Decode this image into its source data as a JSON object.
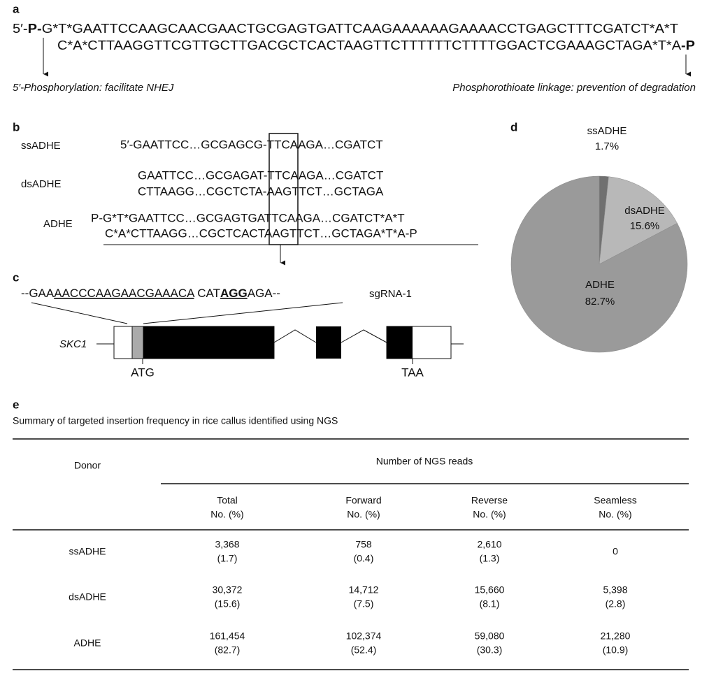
{
  "panel_a": {
    "panel_label": "a",
    "top_strand": [
      "5′-",
      "P-",
      "G*T*GAATTCCAAGCAACGAACTGCGAGTGATTCAAGAAAAAAGAAAACCTGAGCTTTCGATCT*A*T"
    ],
    "bottom_strand": [
      "C*A*CTTAAGGTTCGTTGCTTGACGCTCACTAAGTTCTTTTTTCTTTTGGACTCGAAAGCTAGA*T*A",
      "-P"
    ],
    "annotations": [
      "5′-Phosphorylation: facilitate NHEJ",
      "Phosphorothioate linkage: prevention of degradation"
    ]
  },
  "panel_b": {
    "panel_label": "b",
    "rows": [
      {
        "donor": "ssADHE",
        "strands": [
          "5′-GAATTCC…GCGAGCG-TTCAAGA…CGATCT"
        ]
      },
      {
        "donor": "dsADHE",
        "strands": [
          "GAATTCC…GCGAGAT-TTCAAGA…CGATCT",
          "CTTAAGG…CGCTCTA-AAGTTCT…GCTAGA"
        ]
      },
      {
        "donor": "ADHE",
        "strands": [
          "P-G*T*GAATTCC…GCGAGTGATTCAAGA…CGATCT*A*T",
          "C*A*CTTAAGG…CGCTCACTAAGTTCT…GCTAGA*T*A-P"
        ]
      }
    ]
  },
  "panel_c": {
    "panel_label": "c",
    "target": [
      "--GAA",
      "AACCCAAGAACGAAACA",
      " CAT",
      "AGG",
      "AGA--"
    ],
    "guide": "sgRNA-1",
    "gene": "SKC1",
    "start_codon": "ATG",
    "stop_codon": "TAA"
  },
  "chart_data": {
    "type": "pie",
    "panel_label": "d",
    "categories": [
      "ssADHE",
      "dsADHE",
      "ADHE"
    ],
    "values": [
      1.7,
      15.6,
      82.7
    ],
    "value_labels": [
      "1.7%",
      "15.6%",
      "82.7%"
    ],
    "colors": [
      "#707070",
      "#b8b8b8",
      "#9a9a9a"
    ]
  },
  "panel_e": {
    "panel_label": "e",
    "caption": "Summary of targeted insertion frequency in rice callus identified using NGS",
    "row_header": "Donor",
    "group_header": "Number of NGS reads",
    "columns": [
      [
        "Total",
        "No. (%)"
      ],
      [
        "Forward",
        "No. (%)"
      ],
      [
        "Reverse",
        "No. (%)"
      ],
      [
        "Seamless",
        "No. (%)"
      ]
    ],
    "rows": [
      {
        "donor": "ssADHE",
        "cells": [
          [
            "3,368",
            "(1.7)"
          ],
          [
            "758",
            "(0.4)"
          ],
          [
            "2,610",
            "(1.3)"
          ],
          [
            "0"
          ]
        ]
      },
      {
        "donor": "dsADHE",
        "cells": [
          [
            "30,372",
            "(15.6)"
          ],
          [
            "14,712",
            "(7.5)"
          ],
          [
            "15,660",
            "(8.1)"
          ],
          [
            "5,398",
            "(2.8)"
          ]
        ]
      },
      {
        "donor": "ADHE",
        "cells": [
          [
            "161,454",
            "(82.7)"
          ],
          [
            "102,374",
            "(52.4)"
          ],
          [
            "59,080",
            "(30.3)"
          ],
          [
            "21,280",
            "(10.9)"
          ]
        ]
      }
    ]
  }
}
